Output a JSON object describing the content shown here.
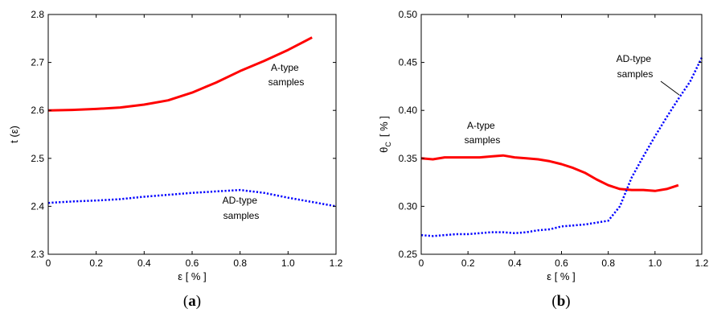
{
  "chart_data": [
    {
      "type": "line",
      "panel_label": {
        "open": "(",
        "letter": "a",
        "close": ")"
      },
      "title": "",
      "xlabel": "ε [ % ]",
      "ylabel": "t (ε)",
      "xlim": [
        0,
        1.2
      ],
      "ylim": [
        2.3,
        2.8
      ],
      "xticks": [
        "0",
        "0.2",
        "0.4",
        "0.6",
        "0.8",
        "1.0",
        "1.2"
      ],
      "yticks": [
        "2.3",
        "2.4",
        "2.5",
        "2.6",
        "2.7",
        "2.8"
      ],
      "grid": false,
      "legend": "none",
      "series": [
        {
          "name": "A-type samples",
          "color": "#ff0000",
          "style": "solid",
          "annotation": [
            "A-type",
            "samples"
          ],
          "x": [
            0,
            0.1,
            0.2,
            0.3,
            0.4,
            0.5,
            0.6,
            0.7,
            0.8,
            0.9,
            1.0,
            1.1
          ],
          "y": [
            2.6,
            2.601,
            2.603,
            2.606,
            2.612,
            2.621,
            2.637,
            2.658,
            2.682,
            2.703,
            2.726,
            2.752
          ]
        },
        {
          "name": "AD-type samples",
          "color": "#0000ff",
          "style": "dotted",
          "annotation": [
            "AD-type",
            "samples"
          ],
          "x": [
            0,
            0.1,
            0.2,
            0.3,
            0.4,
            0.5,
            0.6,
            0.7,
            0.8,
            0.9,
            1.0,
            1.1,
            1.2
          ],
          "y": [
            2.407,
            2.41,
            2.412,
            2.415,
            2.42,
            2.424,
            2.428,
            2.431,
            2.434,
            2.428,
            2.418,
            2.409,
            2.4
          ]
        }
      ]
    },
    {
      "type": "line",
      "panel_label": {
        "open": "(",
        "letter": "b",
        "close": ")"
      },
      "title": "",
      "xlabel": "ε [ % ]",
      "ylabel": "θ",
      "ylabel_sub": "C",
      "ylabel_unit": "[ % ]",
      "xlim": [
        0,
        1.2
      ],
      "ylim": [
        0.25,
        0.5
      ],
      "xticks": [
        "0",
        "0.2",
        "0.4",
        "0.6",
        "0.8",
        "1.0",
        "1.2"
      ],
      "yticks": [
        "0.25",
        "0.30",
        "0.35",
        "0.40",
        "0.45",
        "0.50"
      ],
      "grid": false,
      "legend": "none",
      "series": [
        {
          "name": "A-type samples",
          "color": "#ff0000",
          "style": "solid",
          "annotation": [
            "A-type",
            "samples"
          ],
          "x": [
            0,
            0.05,
            0.1,
            0.15,
            0.2,
            0.25,
            0.3,
            0.35,
            0.4,
            0.45,
            0.5,
            0.55,
            0.6,
            0.65,
            0.7,
            0.75,
            0.8,
            0.85,
            0.9,
            0.95,
            1.0,
            1.05,
            1.1
          ],
          "y": [
            0.35,
            0.349,
            0.351,
            0.351,
            0.351,
            0.351,
            0.352,
            0.353,
            0.351,
            0.35,
            0.349,
            0.347,
            0.344,
            0.34,
            0.335,
            0.328,
            0.322,
            0.318,
            0.317,
            0.317,
            0.316,
            0.318,
            0.322
          ]
        },
        {
          "name": "AD-type samples",
          "color": "#0000ff",
          "style": "dotted",
          "annotation": [
            "AD-type",
            "samples"
          ],
          "x": [
            0,
            0.05,
            0.1,
            0.15,
            0.2,
            0.25,
            0.3,
            0.35,
            0.4,
            0.45,
            0.5,
            0.55,
            0.6,
            0.65,
            0.7,
            0.75,
            0.8,
            0.85,
            0.9,
            0.95,
            1.0,
            1.05,
            1.1,
            1.15,
            1.2
          ],
          "y": [
            0.27,
            0.269,
            0.27,
            0.271,
            0.271,
            0.272,
            0.273,
            0.273,
            0.272,
            0.273,
            0.275,
            0.276,
            0.279,
            0.28,
            0.281,
            0.283,
            0.285,
            0.3,
            0.33,
            0.352,
            0.373,
            0.393,
            0.412,
            0.43,
            0.455
          ]
        }
      ]
    }
  ]
}
